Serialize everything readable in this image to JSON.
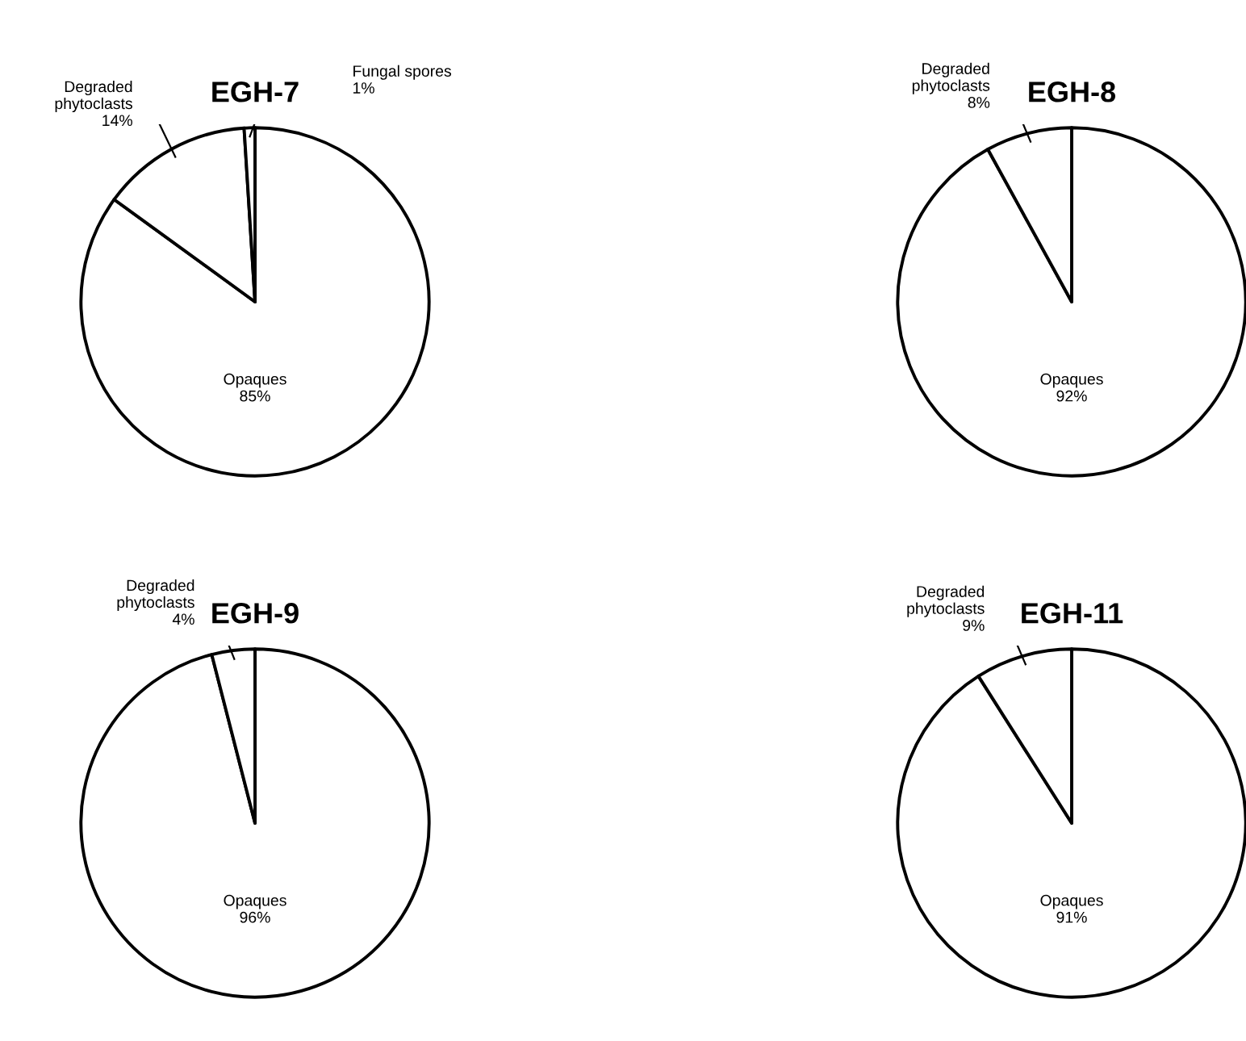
{
  "chart_data": [
    {
      "type": "pie",
      "title": "EGH-7",
      "categories": [
        "Opaques",
        "Degraded\nphytoclasts",
        "Fungal spores"
      ],
      "values": [
        85,
        14,
        1
      ],
      "value_labels": [
        "85%",
        "14%",
        "1%"
      ],
      "colors": [
        "#ffffff",
        "#ffffff",
        "#ffffff"
      ],
      "legend": false
    },
    {
      "type": "pie",
      "title": "EGH-8",
      "categories": [
        "Opaques",
        "Degraded\nphytoclasts"
      ],
      "values": [
        92,
        8
      ],
      "value_labels": [
        "92%",
        "8%"
      ],
      "colors": [
        "#ffffff",
        "#ffffff"
      ],
      "legend": false
    },
    {
      "type": "pie",
      "title": "EGH-9",
      "categories": [
        "Opaques",
        "Degraded\nphytoclasts"
      ],
      "values": [
        96,
        4
      ],
      "value_labels": [
        "96%",
        "4%"
      ],
      "colors": [
        "#ffffff",
        "#ffffff"
      ],
      "legend": false
    },
    {
      "type": "pie",
      "title": "EGH-11",
      "categories": [
        "Opaques",
        "Degraded\nphytoclasts"
      ],
      "values": [
        91,
        9
      ],
      "value_labels": [
        "91%",
        "9%"
      ],
      "colors": [
        "#ffffff",
        "#ffffff"
      ],
      "legend": false
    }
  ]
}
